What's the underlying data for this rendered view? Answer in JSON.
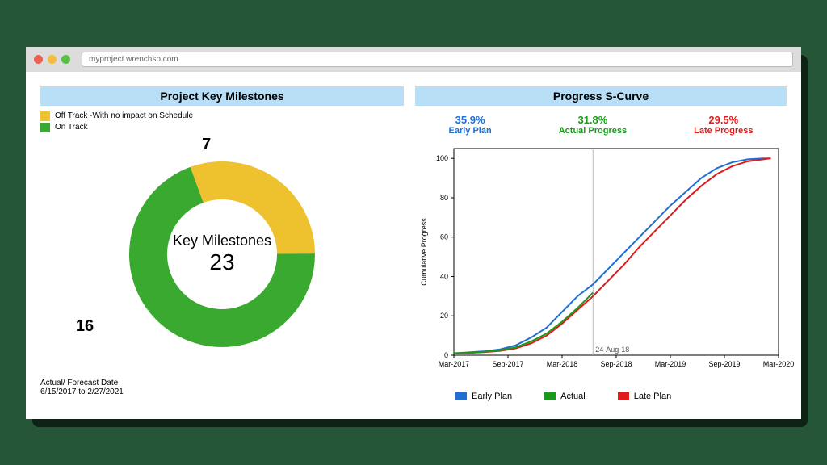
{
  "browser": {
    "url": "myproject.wrenchsp.com"
  },
  "milestones": {
    "title": "Project Key Milestones",
    "legend": [
      {
        "label": "Off Track -With no impact on Schedule",
        "color": "#eec12e"
      },
      {
        "label": "On Track",
        "color": "#3aa92f"
      }
    ],
    "center_label": "Key Milestones",
    "center_value": "23",
    "donut": {
      "type": "donut",
      "segments": [
        {
          "value": 7,
          "color": "#eec12e",
          "label_pos": "tr"
        },
        {
          "value": 16,
          "color": "#3aa92f",
          "label_pos": "l"
        }
      ],
      "start_angle_deg": -20,
      "outer_r": 115,
      "inner_r": 68,
      "bg": "#ffffff"
    },
    "footnote_title": "Actual/ Forecast Date",
    "footnote_range": "6/15/2017 to 2/27/2021"
  },
  "scurve": {
    "title": "Progress S-Curve",
    "kpis": [
      {
        "value": "35.9%",
        "label": "Early Plan",
        "color": "#1f6fd4"
      },
      {
        "value": "31.8%",
        "label": "Actual Progress",
        "color": "#1a9a1a"
      },
      {
        "value": "29.5%",
        "label": "Late Progress",
        "color": "#e11a1a"
      }
    ],
    "y_label": "Cumulative Progress",
    "x_ticks": [
      "Mar-2017",
      "Sep-2017",
      "Mar-2018",
      "Sep-2018",
      "Mar-2019",
      "Sep-2019",
      "Mar-2020"
    ],
    "y_ticks": [
      0,
      20,
      40,
      60,
      80,
      100
    ],
    "xlim": [
      0,
      42
    ],
    "ylim": [
      0,
      105
    ],
    "marker_x": 18,
    "marker_label": "24-Aug-18",
    "grid_color": "#bdbdbd",
    "axis_color": "#000000",
    "background": "#ffffff",
    "series": {
      "early": {
        "color": "#1f6fd4",
        "width": 2,
        "points": [
          [
            0,
            1
          ],
          [
            2,
            1.5
          ],
          [
            4,
            2
          ],
          [
            6,
            3
          ],
          [
            8,
            5
          ],
          [
            10,
            9
          ],
          [
            12,
            14
          ],
          [
            14,
            22
          ],
          [
            16,
            30
          ],
          [
            18,
            36
          ],
          [
            20,
            44
          ],
          [
            22,
            52
          ],
          [
            24,
            60
          ],
          [
            26,
            68
          ],
          [
            28,
            76
          ],
          [
            30,
            83
          ],
          [
            32,
            90
          ],
          [
            34,
            95
          ],
          [
            36,
            98
          ],
          [
            38,
            99.5
          ],
          [
            40,
            100
          ],
          [
            41,
            100
          ]
        ]
      },
      "actual": {
        "color": "#1a9a1a",
        "width": 2,
        "points": [
          [
            0,
            1
          ],
          [
            2,
            1.2
          ],
          [
            4,
            1.8
          ],
          [
            6,
            2.5
          ],
          [
            8,
            4
          ],
          [
            10,
            7
          ],
          [
            12,
            11
          ],
          [
            14,
            17
          ],
          [
            16,
            24
          ],
          [
            18,
            31.8
          ]
        ]
      },
      "late": {
        "color": "#e11a1a",
        "width": 2,
        "points": [
          [
            0,
            1
          ],
          [
            2,
            1.2
          ],
          [
            4,
            1.6
          ],
          [
            6,
            2.2
          ],
          [
            8,
            3.5
          ],
          [
            10,
            6
          ],
          [
            12,
            10
          ],
          [
            14,
            16
          ],
          [
            16,
            23
          ],
          [
            18,
            30
          ],
          [
            20,
            38
          ],
          [
            22,
            46
          ],
          [
            24,
            55
          ],
          [
            26,
            63
          ],
          [
            28,
            71
          ],
          [
            30,
            79
          ],
          [
            32,
            86
          ],
          [
            34,
            92
          ],
          [
            36,
            96
          ],
          [
            38,
            98.5
          ],
          [
            40,
            99.5
          ],
          [
            41,
            100
          ]
        ]
      }
    },
    "legend": [
      {
        "label": "Early Plan",
        "color": "#1f6fd4"
      },
      {
        "label": "Actual",
        "color": "#1a9a1a"
      },
      {
        "label": "Late Plan",
        "color": "#e11a1a"
      }
    ]
  }
}
